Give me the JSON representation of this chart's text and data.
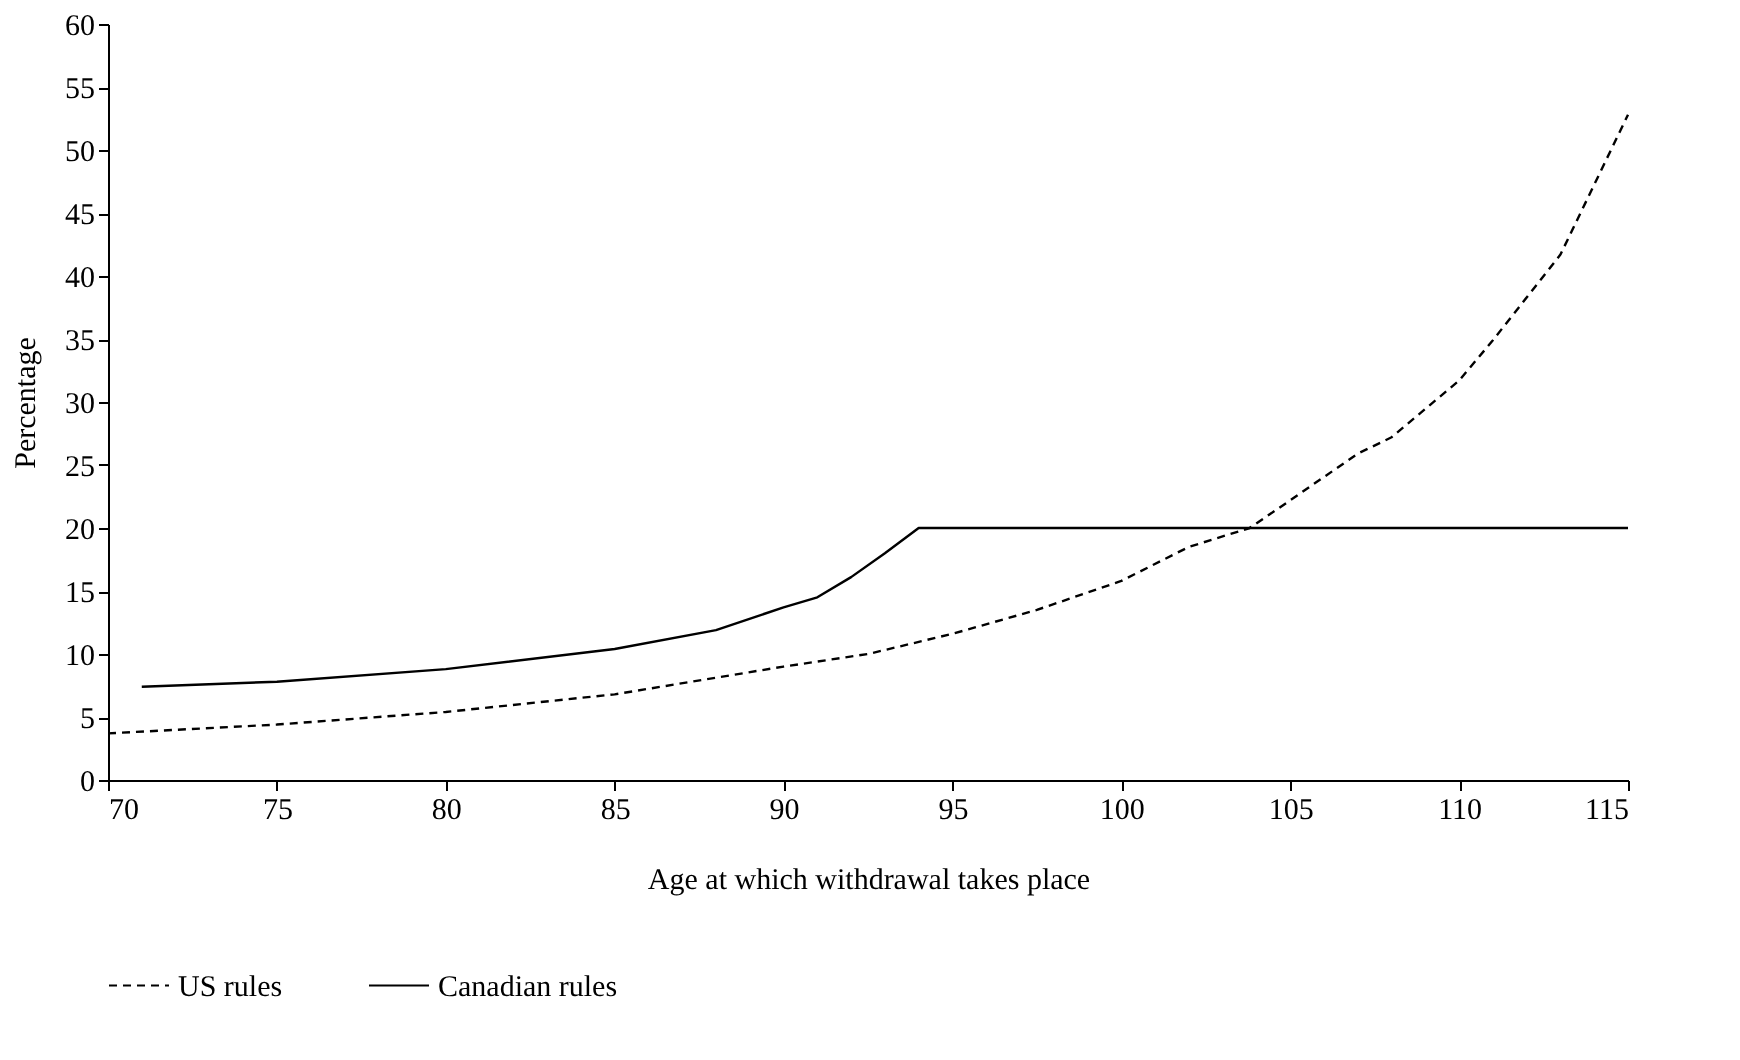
{
  "chart_data": {
    "type": "line",
    "xlabel": "Age at which withdrawal takes place",
    "ylabel": "Percentage",
    "xlim": [
      70,
      115
    ],
    "xticks": [
      70,
      75,
      80,
      85,
      90,
      95,
      100,
      105,
      110,
      115
    ],
    "ylim": [
      0,
      60
    ],
    "yticks": [
      0,
      5,
      10,
      15,
      20,
      25,
      30,
      35,
      40,
      45,
      50,
      55,
      60
    ],
    "grid": false,
    "legend": "bottom",
    "marker": "none",
    "series": [
      {
        "name": "US rules",
        "color": "#000000",
        "line_style": "dashed",
        "x": [
          70,
          75,
          80,
          85,
          90,
          92.5,
          95,
          97.5,
          100,
          102,
          103.8,
          105,
          107,
          108,
          110,
          111,
          113,
          115
        ],
        "values": [
          3.7,
          4.4,
          5.4,
          6.8,
          9.0,
          10.0,
          11.6,
          13.5,
          15.8,
          18.5,
          20,
          22.2,
          25.9,
          27.2,
          31.7,
          34.9,
          41.7,
          52.8
        ]
      },
      {
        "name": "Canadian rules",
        "color": "#000000",
        "line_style": "solid",
        "x": [
          71,
          75,
          80,
          85,
          88,
          90,
          91,
          92,
          93,
          94,
          100,
          105,
          110,
          115
        ],
        "values": [
          7.4,
          7.8,
          8.8,
          10.4,
          11.9,
          13.7,
          14.5,
          16.1,
          18.0,
          20,
          20,
          20,
          20,
          20
        ]
      }
    ]
  }
}
